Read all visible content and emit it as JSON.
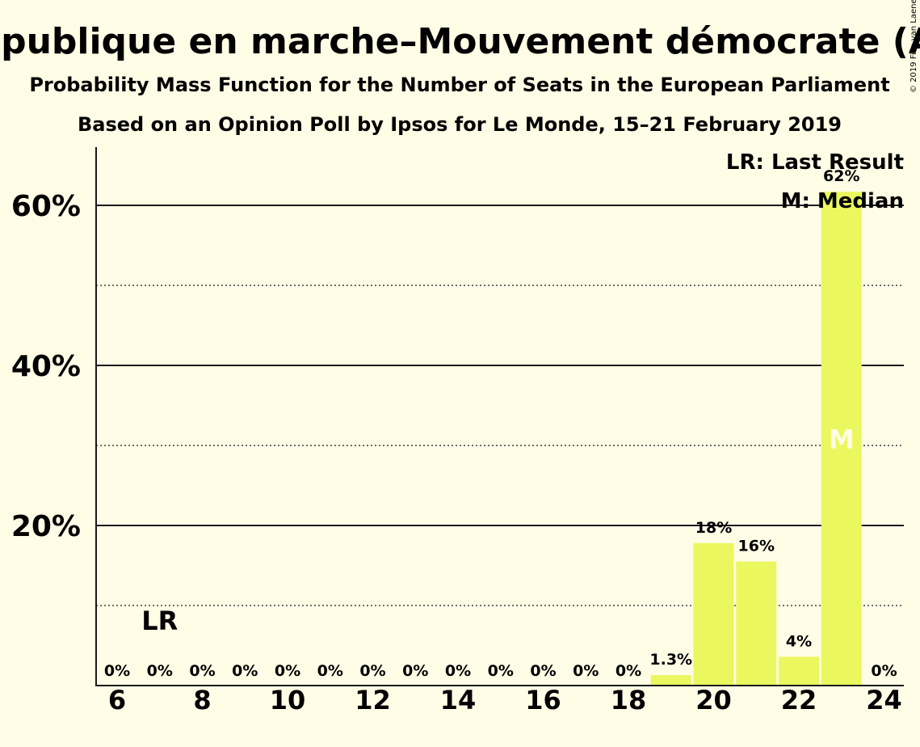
{
  "title": "La République en marche–Mouvement démocrate (ALDE)",
  "subtitle1": "Probability Mass Function for the Number of Seats in the European Parliament",
  "subtitle2": "Based on an Opinion Poll by Ipsos for Le Monde, 15–21 February 2019",
  "copyright": "© 2019 Filip van Laenen",
  "legend": {
    "last_result": "LR: Last Result",
    "median": "M: Median"
  },
  "markers": {
    "last_result_label": "LR",
    "last_result_seat": 7,
    "median_label": "M",
    "median_seat": 23
  },
  "colors": {
    "background": "#fffde6",
    "bar": "#ebf75e",
    "axis": "#1a1a1a"
  },
  "chart_data": {
    "type": "bar",
    "x": [
      6,
      7,
      8,
      9,
      10,
      11,
      12,
      13,
      14,
      15,
      16,
      17,
      18,
      19,
      20,
      21,
      22,
      23,
      24
    ],
    "values": [
      0,
      0,
      0,
      0,
      0,
      0,
      0,
      0,
      0,
      0,
      0,
      0,
      0,
      1.3,
      17.8,
      15.5,
      3.6,
      61.7,
      0
    ],
    "labels": [
      "0%",
      "0%",
      "0%",
      "0%",
      "0%",
      "0%",
      "0%",
      "0%",
      "0%",
      "0%",
      "0%",
      "0%",
      "0%",
      "1.3%",
      "18%",
      "16%",
      "4%",
      "62%",
      "0%"
    ],
    "xticks": [
      "6",
      "8",
      "10",
      "12",
      "14",
      "16",
      "18",
      "20",
      "22",
      "24"
    ],
    "xtick_values": [
      6,
      8,
      10,
      12,
      14,
      16,
      18,
      20,
      22,
      24
    ],
    "yticks": [
      "20%",
      "40%",
      "60%"
    ],
    "ytick_values": [
      20,
      40,
      60
    ],
    "minor_grid": [
      10,
      30,
      50
    ],
    "ylim": [
      0,
      67
    ],
    "xlabel": "",
    "ylabel": ""
  }
}
